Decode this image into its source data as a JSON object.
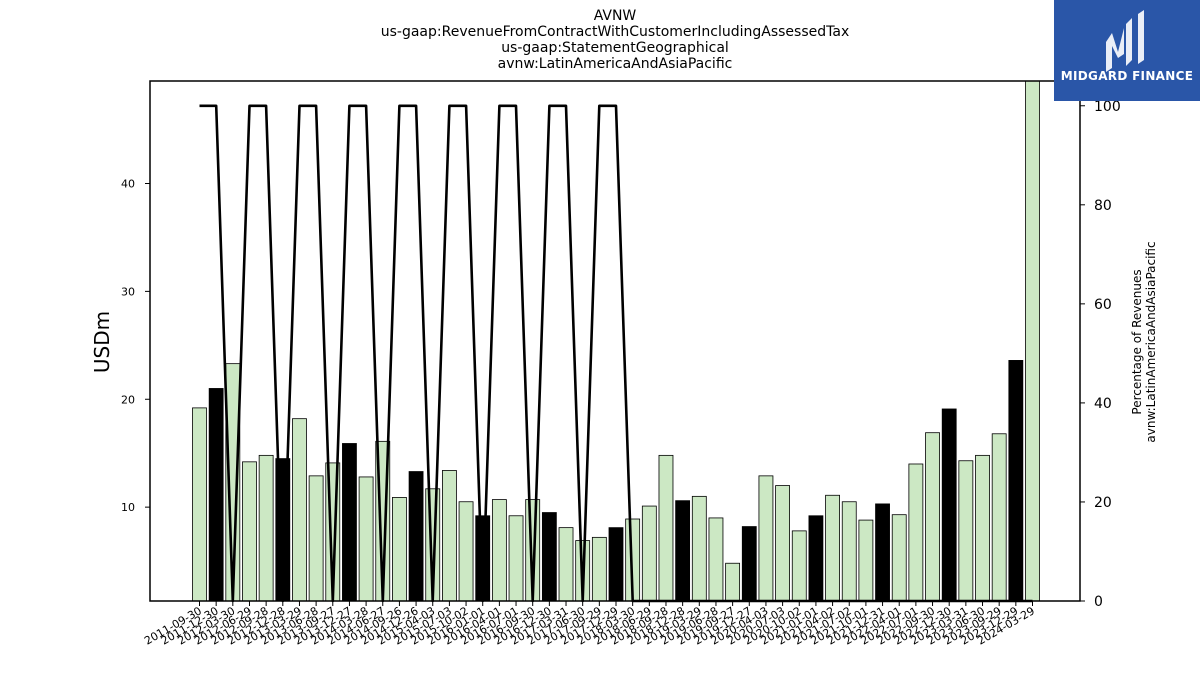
{
  "title_lines": [
    "AVNW",
    "us-gaap:RevenueFromContractWithCustomerIncludingAssessedTax",
    "us-gaap:StatementGeographical",
    "avnw:LatinAmericaAndAsiaPacific"
  ],
  "logo": {
    "text": "MIDGARD FINANCE",
    "color": "#2a56a8"
  },
  "chart_data": {
    "type": "bar",
    "ylabel": "USDm",
    "y2label_lines": [
      "Percentage of Revenues",
      "avnw:LatinAmericaAndAsiaPacific"
    ],
    "ylim": [
      1.3,
      49.5
    ],
    "y2lim": [
      0,
      105
    ],
    "yticks": [
      10,
      20,
      30,
      40
    ],
    "y2ticks": [
      0,
      20,
      40,
      60,
      80,
      100
    ],
    "categories": [
      "2011-09-30",
      "2011-12-30",
      "2012-03-30",
      "2012-06-29",
      "2012-09-28",
      "2012-12-28",
      "2013-03-29",
      "2013-06-28",
      "2013-09-27",
      "2013-12-27",
      "2014-03-28",
      "2014-06-27",
      "2014-09-26",
      "2014-12-26",
      "2015-04-03",
      "2015-07-03",
      "2015-10-02",
      "2016-01-01",
      "2016-04-01",
      "2016-07-01",
      "2016-09-30",
      "2016-12-30",
      "2017-03-31",
      "2017-06-30",
      "2017-09-29",
      "2017-12-29",
      "2018-03-30",
      "2018-06-29",
      "2018-09-28",
      "2018-12-28",
      "2019-03-29",
      "2019-06-28",
      "2019-09-27",
      "2019-12-27",
      "2020-04-03",
      "2020-07-03",
      "2020-10-02",
      "2021-01-01",
      "2021-04-02",
      "2021-07-02",
      "2021-10-01",
      "2021-12-31",
      "2022-04-01",
      "2022-07-01",
      "2022-09-30",
      "2022-12-30",
      "2023-03-31",
      "2023-06-30",
      "2023-09-29",
      "2023-12-29",
      "2024-03-29"
    ],
    "values": [
      19.2,
      21.0,
      23.3,
      14.2,
      14.8,
      14.5,
      18.2,
      12.9,
      14.1,
      15.9,
      12.8,
      16.1,
      10.9,
      13.3,
      11.7,
      13.4,
      10.5,
      9.2,
      10.7,
      9.2,
      10.7,
      9.5,
      8.1,
      6.9,
      7.2,
      8.1,
      8.9,
      10.1,
      14.8,
      10.6,
      11.0,
      9.0,
      4.8,
      8.2,
      12.9,
      12.0,
      7.8,
      9.2,
      11.1,
      10.5,
      8.8,
      10.3,
      9.3,
      14.0,
      16.9,
      19.1,
      14.3,
      14.8,
      16.8,
      23.6,
      49.5
    ],
    "highlight": [
      false,
      true,
      false,
      false,
      false,
      true,
      false,
      false,
      false,
      true,
      false,
      false,
      false,
      true,
      false,
      false,
      false,
      true,
      false,
      false,
      false,
      true,
      false,
      false,
      false,
      true,
      false,
      false,
      false,
      true,
      false,
      false,
      false,
      true,
      false,
      false,
      false,
      true,
      false,
      false,
      false,
      true,
      false,
      false,
      false,
      true,
      false,
      false,
      false,
      true,
      false
    ],
    "percentage_series": [
      100,
      100,
      0,
      100,
      100,
      0,
      100,
      100,
      0,
      100,
      100,
      0,
      100,
      100,
      0,
      100,
      100,
      0,
      100,
      100,
      0,
      100,
      100,
      0,
      100,
      100,
      0,
      0,
      0,
      0,
      0,
      0,
      0,
      0,
      0,
      0,
      0,
      0,
      0,
      0,
      0,
      0,
      0,
      0,
      0,
      0,
      0,
      0,
      0,
      0,
      0
    ],
    "colors": {
      "bar": "#cce8c4",
      "bar_highlight": "#000000",
      "line": "#000000"
    }
  }
}
